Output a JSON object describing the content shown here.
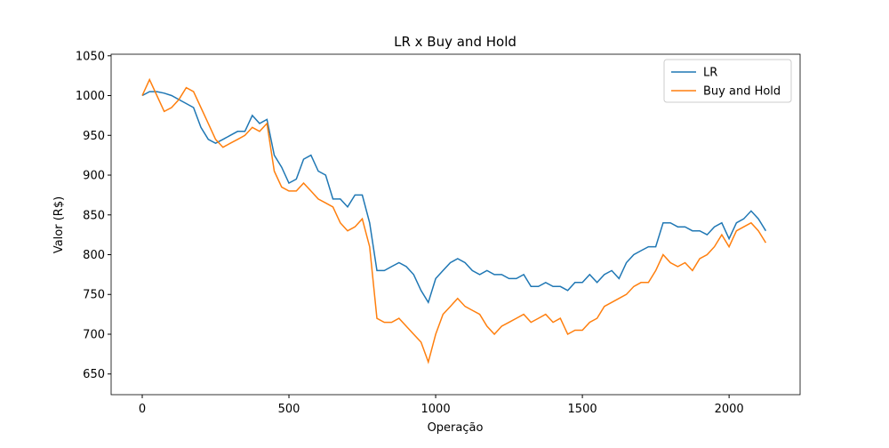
{
  "chart_data": {
    "type": "line",
    "title": "LR x Buy and Hold",
    "xlabel": "Operação",
    "ylabel": "Valor (R$)",
    "x": [
      0,
      25,
      50,
      75,
      100,
      125,
      150,
      175,
      200,
      225,
      250,
      275,
      300,
      325,
      350,
      375,
      400,
      425,
      450,
      475,
      500,
      525,
      550,
      575,
      600,
      625,
      650,
      675,
      700,
      725,
      750,
      775,
      800,
      825,
      850,
      875,
      900,
      925,
      950,
      975,
      1000,
      1025,
      1050,
      1075,
      1100,
      1125,
      1150,
      1175,
      1200,
      1225,
      1250,
      1275,
      1300,
      1325,
      1350,
      1375,
      1400,
      1425,
      1450,
      1475,
      1500,
      1525,
      1550,
      1575,
      1600,
      1625,
      1650,
      1675,
      1700,
      1725,
      1750,
      1775,
      1800,
      1825,
      1850,
      1875,
      1900,
      1925,
      1950,
      1975,
      2000,
      2025,
      2050,
      2075,
      2100,
      2125
    ],
    "series": [
      {
        "name": "LR",
        "color": "#1f77b4",
        "values": [
          1000,
          1005,
          1005,
          1003,
          1000,
          995,
          990,
          985,
          960,
          945,
          940,
          945,
          950,
          955,
          955,
          975,
          965,
          970,
          925,
          910,
          890,
          895,
          920,
          925,
          905,
          900,
          870,
          870,
          860,
          875,
          875,
          840,
          780,
          780,
          785,
          790,
          785,
          775,
          755,
          740,
          770,
          780,
          790,
          795,
          790,
          780,
          775,
          780,
          775,
          775,
          770,
          770,
          775,
          760,
          760,
          765,
          760,
          760,
          755,
          765,
          765,
          775,
          765,
          775,
          780,
          770,
          790,
          800,
          805,
          810,
          810,
          840,
          840,
          835,
          835,
          830,
          830,
          825,
          835,
          840,
          820,
          840,
          845,
          855,
          845,
          830
        ]
      },
      {
        "name": "Buy and Hold",
        "color": "#ff7f0e",
        "values": [
          1000,
          1020,
          1000,
          980,
          985,
          995,
          1010,
          1005,
          985,
          965,
          945,
          935,
          940,
          945,
          950,
          960,
          955,
          965,
          905,
          885,
          880,
          880,
          890,
          880,
          870,
          865,
          860,
          840,
          830,
          835,
          845,
          810,
          720,
          715,
          715,
          720,
          710,
          700,
          690,
          665,
          700,
          725,
          735,
          745,
          735,
          730,
          725,
          710,
          700,
          710,
          715,
          720,
          725,
          715,
          720,
          725,
          715,
          720,
          700,
          705,
          705,
          715,
          720,
          735,
          740,
          745,
          750,
          760,
          765,
          765,
          780,
          800,
          790,
          785,
          790,
          780,
          795,
          800,
          810,
          825,
          810,
          830,
          835,
          840,
          830,
          815
        ]
      }
    ],
    "xlim": [
      -106,
      2242
    ],
    "ylim": [
      624,
      1052
    ],
    "xticks": [
      0,
      500,
      1000,
      1500,
      2000
    ],
    "yticks": [
      650,
      700,
      750,
      800,
      850,
      900,
      950,
      1000,
      1050
    ],
    "legend": "upper right"
  }
}
